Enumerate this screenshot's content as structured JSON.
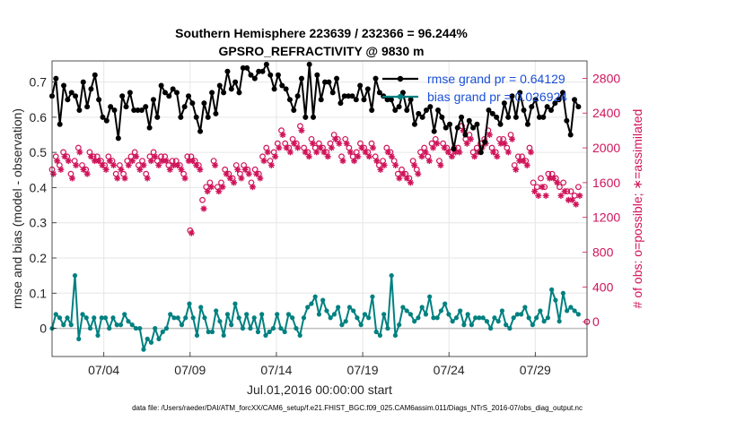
{
  "chart_data": {
    "type": "line",
    "title": "Southern Hemisphere 223639 / 232366 = 96.244%",
    "subtitle": "GPSRO_REFRACTIVITY @ 9830 m",
    "xlabel": "Jul.01,2016 00:00:00 start",
    "ylabel_left": "rmse and bias (model - observation)",
    "ylabel_right": "# of obs: o=possible; ∗=assimilated",
    "x_ticks": [
      "07/04",
      "07/09",
      "07/14",
      "07/19",
      "07/24",
      "07/29"
    ],
    "y_left_ticks": [
      "0",
      "0.1",
      "0.2",
      "0.3",
      "0.4",
      "0.5",
      "0.6",
      "0.7"
    ],
    "y_right_ticks": [
      "0",
      "400",
      "800",
      "1200",
      "1600",
      "2000",
      "2400",
      "2800"
    ],
    "xlim": [
      1.0,
      32.0
    ],
    "ylim_left": [
      -0.08,
      0.76
    ],
    "ylim_right": [
      -400,
      3000
    ],
    "legend": [
      {
        "name": "rmse grand pr = 0.64129",
        "color": "#000000"
      },
      {
        "name": "bias grand pr = 0.026924",
        "color": "#008080"
      }
    ],
    "series": [
      {
        "name": "rmse",
        "axis": "left",
        "color": "#000000",
        "marker": "star",
        "values": [
          0.66,
          0.71,
          0.58,
          0.69,
          0.65,
          0.67,
          0.66,
          0.62,
          0.7,
          0.63,
          0.68,
          0.72,
          0.65,
          0.6,
          0.59,
          0.63,
          0.62,
          0.54,
          0.66,
          0.63,
          0.67,
          0.62,
          0.62,
          0.62,
          0.63,
          0.57,
          0.65,
          0.6,
          0.69,
          0.67,
          0.66,
          0.68,
          0.67,
          0.6,
          0.63,
          0.66,
          0.64,
          0.6,
          0.56,
          0.64,
          0.6,
          0.67,
          0.61,
          0.69,
          0.67,
          0.73,
          0.68,
          0.7,
          0.67,
          0.74,
          0.74,
          0.72,
          0.71,
          0.73,
          0.73,
          0.75,
          0.72,
          0.68,
          0.72,
          0.69,
          0.68,
          0.65,
          0.62,
          0.66,
          0.71,
          0.6,
          0.75,
          0.6,
          0.72,
          0.65,
          0.7,
          0.7,
          0.67,
          0.71,
          0.64,
          0.66,
          0.66,
          0.66,
          0.65,
          0.69,
          0.65,
          0.68,
          0.62,
          0.71,
          0.67,
          0.66,
          0.65,
          0.65,
          0.62,
          0.63,
          0.67,
          0.62,
          0.65,
          0.58,
          0.61,
          0.6,
          0.62,
          0.63,
          0.56,
          0.62,
          0.6,
          0.57,
          0.58,
          0.51,
          0.57,
          0.6,
          0.55,
          0.59,
          0.57,
          0.58,
          0.5,
          0.53,
          0.62,
          0.61,
          0.6,
          0.58,
          0.64,
          0.6,
          0.66,
          0.6,
          0.67,
          0.62,
          0.58,
          0.63,
          0.65,
          0.6,
          0.6,
          0.63,
          0.62,
          0.64,
          0.65,
          0.67,
          0.59,
          0.55,
          0.65,
          0.63
        ]
      },
      {
        "name": "bias",
        "axis": "left",
        "color": "#008080",
        "marker": "dot",
        "values": [
          0.0,
          0.04,
          0.03,
          0.01,
          0.03,
          0.01,
          0.15,
          -0.03,
          0.04,
          0.03,
          0.0,
          0.03,
          -0.02,
          0.03,
          0.03,
          0.0,
          0.03,
          0.01,
          0.01,
          0.04,
          0.02,
          0.01,
          0.0,
          0.0,
          -0.06,
          -0.03,
          -0.04,
          0.0,
          -0.03,
          -0.01,
          0.0,
          0.04,
          0.03,
          0.03,
          0.01,
          0.03,
          0.07,
          0.03,
          -0.02,
          0.06,
          0.03,
          -0.01,
          -0.01,
          0.05,
          0.02,
          -0.02,
          0.04,
          0.01,
          0.07,
          0.03,
          0.0,
          0.04,
          0.0,
          0.03,
          -0.01,
          0.04,
          -0.02,
          -0.01,
          0.0,
          0.04,
          0.0,
          -0.01,
          0.04,
          0.03,
          0.0,
          -0.02,
          0.03,
          0.06,
          0.07,
          0.09,
          0.04,
          0.08,
          0.05,
          0.03,
          0.04,
          0.06,
          0.01,
          0.02,
          0.06,
          0.05,
          0.03,
          0.01,
          0.04,
          0.03,
          0.09,
          -0.01,
          -0.02,
          0.04,
          0.0,
          0.15,
          -0.02,
          0.01,
          0.06,
          0.05,
          0.04,
          0.02,
          0.03,
          0.06,
          0.04,
          0.09,
          0.03,
          0.03,
          0.05,
          0.07,
          0.04,
          0.02,
          0.03,
          0.05,
          0.01,
          0.04,
          0.01,
          0.03,
          0.03,
          0.03,
          0.02,
          0.0,
          0.03,
          0.02,
          0.05,
          0.01,
          0.0,
          0.03,
          0.04,
          0.04,
          0.06,
          0.03,
          0.01,
          0.03,
          0.05,
          0.02,
          0.03,
          0.11,
          0.08,
          0.02,
          0.1,
          0.05,
          0.06,
          0.05,
          0.04
        ]
      },
      {
        "name": "possible",
        "axis": "right",
        "color": "#d0145a",
        "marker": "circle",
        "values": [
          1750,
          1900,
          1800,
          1950,
          1900,
          1700,
          1850,
          2000,
          1800,
          1750,
          1950,
          1900,
          1900,
          1850,
          1800,
          1900,
          1850,
          1700,
          1800,
          1700,
          1850,
          1900,
          1950,
          1800,
          1850,
          1700,
          1900,
          1950,
          1850,
          1900,
          1900,
          1800,
          1850,
          1850,
          1800,
          1700,
          1900,
          1900,
          1850,
          1800,
          1400,
          1550,
          1600,
          1850,
          1550,
          1600,
          1750,
          1700,
          1650,
          1800,
          1700,
          1800,
          1750,
          1600,
          1750,
          1700,
          1900,
          2000,
          1850,
          1950,
          2050,
          2200,
          2050,
          2000,
          2100,
          2050,
          2250,
          2000,
          1950,
          2100,
          2000,
          2050,
          2000,
          1950,
          2050,
          2150,
          2100,
          1900,
          2100,
          2000,
          1900,
          1950,
          2050,
          2000,
          1950,
          2050,
          1900,
          1800,
          1850,
          2000,
          1950,
          1850,
          1700,
          1750,
          1700,
          1650,
          1850,
          1750,
          1950,
          2000,
          1900,
          2050,
          2100,
          1850,
          2050,
          2000,
          1950,
          2000,
          2000,
          2250,
          2100,
          2150,
          1950,
          2000,
          2050,
          2100,
          2200,
          2000,
          1950,
          2100,
          2100,
          2000,
          2150,
          1800,
          1900,
          1900,
          1850,
          2000,
          1600,
          1550,
          1650,
          1550,
          1700,
          1700,
          1650,
          1550,
          1600,
          1500,
          1500,
          1450,
          1550
        ]
      },
      {
        "name": "assimilated",
        "axis": "right",
        "color": "#d0145a",
        "marker": "asterisk",
        "values": [
          1700,
          1850,
          1750,
          1900,
          1850,
          1650,
          1800,
          1950,
          1750,
          1700,
          1900,
          1850,
          1850,
          1800,
          1750,
          1850,
          1800,
          1650,
          1750,
          1650,
          1800,
          1850,
          1900,
          1750,
          1800,
          1650,
          1850,
          1900,
          1800,
          1850,
          1850,
          1750,
          1800,
          1800,
          1750,
          1650,
          1850,
          1850,
          1800,
          1750,
          1300,
          1500,
          1550,
          1800,
          1500,
          1550,
          1700,
          1650,
          1600,
          1750,
          1650,
          1750,
          1700,
          1550,
          1700,
          1650,
          1850,
          1950,
          1800,
          1900,
          2000,
          2150,
          2000,
          1950,
          2050,
          2000,
          2200,
          1950,
          1900,
          2050,
          1950,
          2000,
          1950,
          1900,
          2000,
          2100,
          2050,
          1850,
          2050,
          1950,
          1850,
          1900,
          2000,
          1950,
          1900,
          2000,
          1850,
          1750,
          1800,
          1950,
          1900,
          1800,
          1650,
          1700,
          1650,
          1600,
          1800,
          1700,
          1900,
          1950,
          1850,
          2000,
          2050,
          1800,
          2000,
          1950,
          1900,
          1950,
          1950,
          2200,
          2050,
          2100,
          1900,
          1950,
          2000,
          2050,
          2150,
          1950,
          1900,
          2050,
          2050,
          1950,
          2100,
          1750,
          1850,
          1850,
          1800,
          1950,
          1500,
          1450,
          1550,
          1450,
          1650,
          1650,
          1600,
          1450,
          1500,
          1400,
          1400,
          1350,
          1450
        ]
      }
    ],
    "annotations": [
      {
        "type": "outlier",
        "series": "possible",
        "x": 9.0,
        "value": 1050
      },
      {
        "type": "outlier",
        "series": "assimilated",
        "x": 9.0,
        "value": 1020
      },
      {
        "type": "zero-count marker",
        "series": "possible",
        "x": 32.0,
        "value": 0
      }
    ]
  },
  "footer": "data file: /Users/raeder/DAI/ATM_forcXX/CAM6_setup/f.e21.FHIST_BGC.f09_025.CAM6assim.011/Diags_NTrS_2016-07/obs_diag_output.nc"
}
